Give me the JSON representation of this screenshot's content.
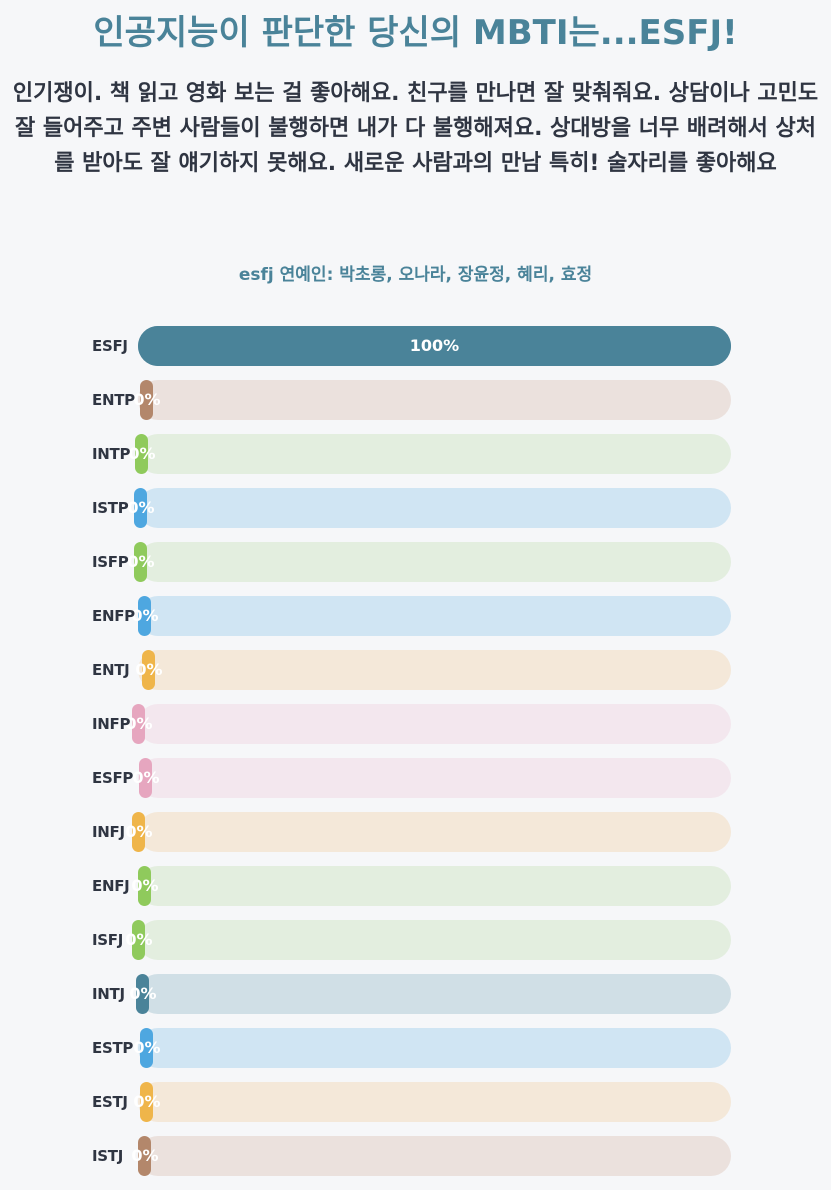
{
  "header": {
    "title": "인공지능이 판단한 당신의 MBTI는...ESFJ!",
    "description": "인기쟁이. 책 읽고 영화 보는 걸 좋아해요. 친구를 만나면 잘 맞춰줘요. 상담이나 고민도 잘 들어주고 주변 사람들이 불행하면 내가 다 불행해져요. 상대방을 너무 배려해서 상처를 받아도 잘 얘기하지 못해요. 새로운 사람과의 만남 특히! 술자리를 좋아해요",
    "celebs": "esfj 연예인: 박초롱, 오나라, 장윤정, 혜리, 효정"
  },
  "chart_data": {
    "type": "bar",
    "orientation": "horizontal",
    "categories": [
      "ESFJ",
      "ENTP",
      "INTP",
      "ISTP",
      "ISFP",
      "ENFP",
      "ENTJ",
      "INFP",
      "ESFP",
      "INFJ",
      "ENFJ",
      "ISFJ",
      "INTJ",
      "ESTP",
      "ESTJ",
      "ISTJ"
    ],
    "values": [
      100,
      0,
      0,
      0,
      0,
      0,
      0,
      0,
      0,
      0,
      0,
      0,
      0,
      0,
      0,
      0
    ],
    "value_labels": [
      "100%",
      "0%",
      "0%",
      "0%",
      "0%",
      "0%",
      "0%",
      "0%",
      "0%",
      "0%",
      "0%",
      "0%",
      "0%",
      "0%",
      "0%",
      "0%"
    ],
    "xlim": [
      0,
      100
    ],
    "colors": [
      "#4a8399",
      "#b3876b",
      "#8fca5c",
      "#4ea7e0",
      "#8fca5c",
      "#4ea7e0",
      "#efb54a",
      "#e6a6bf",
      "#e6a6bf",
      "#efb54a",
      "#8fca5c",
      "#8fca5c",
      "#4a8399",
      "#4ea7e0",
      "#efb54a",
      "#b3876b"
    ],
    "track_colors": [
      "#4a8399",
      "#ebe1dd",
      "#e3eedf",
      "#d0e5f3",
      "#e3eedf",
      "#d0e5f3",
      "#f4e8d9",
      "#f3e7ee",
      "#f3e7ee",
      "#f4e8d9",
      "#e3eedf",
      "#e3eedf",
      "#d0dfe6",
      "#d0e5f3",
      "#f4e8d9",
      "#ebe1dd"
    ]
  }
}
